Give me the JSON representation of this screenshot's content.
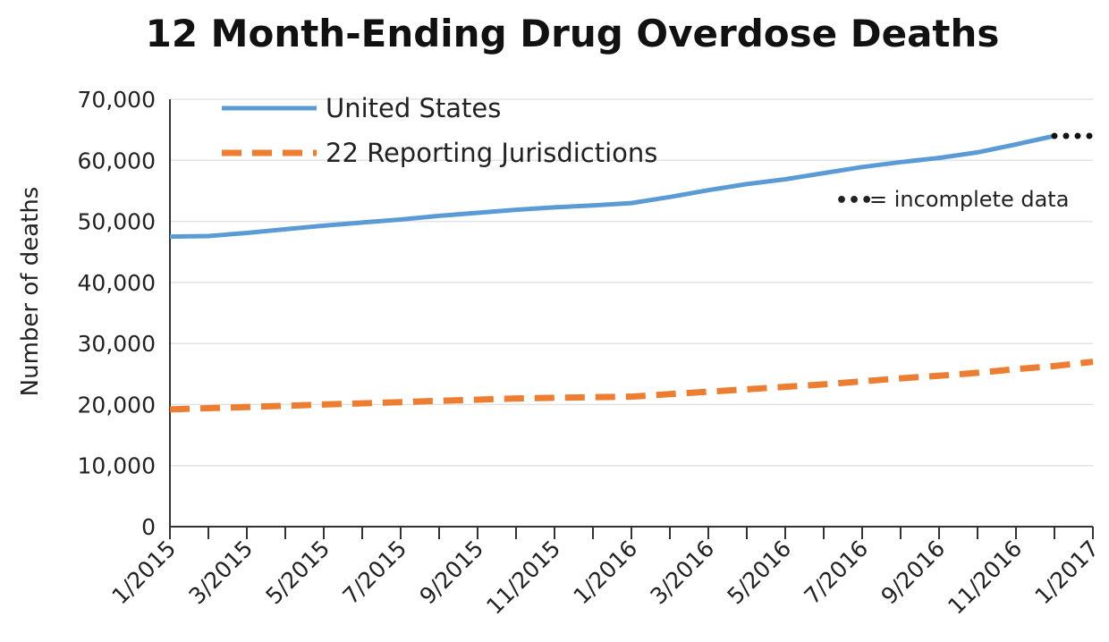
{
  "chart_data": {
    "type": "line",
    "title": "12 Month-Ending Drug Overdose Deaths",
    "xlabel": "",
    "ylabel": "Number of deaths",
    "ylim": [
      0,
      70000
    ],
    "yticks": [
      "0",
      "10,000",
      "20,000",
      "30,000",
      "40,000",
      "50,000",
      "60,000",
      "70,000"
    ],
    "x": [
      "1/2015",
      "2/2015",
      "3/2015",
      "4/2015",
      "5/2015",
      "6/2015",
      "7/2015",
      "8/2015",
      "9/2015",
      "10/2015",
      "11/2015",
      "12/2015",
      "1/2016",
      "2/2016",
      "3/2016",
      "4/2016",
      "5/2016",
      "6/2016",
      "7/2016",
      "8/2016",
      "9/2016",
      "10/2016",
      "11/2016",
      "12/2016",
      "1/2017"
    ],
    "xticks": [
      "1/2015",
      "3/2015",
      "5/2015",
      "7/2015",
      "9/2015",
      "11/2015",
      "1/2016",
      "3/2016",
      "5/2016",
      "7/2016",
      "9/2016",
      "11/2016",
      "1/2017"
    ],
    "grid": true,
    "legend_position": "top-left",
    "series": [
      {
        "name": "United States",
        "color": "#5b9bd5",
        "style": "solid",
        "values": [
          47500,
          47600,
          48100,
          48700,
          49300,
          49800,
          50300,
          50900,
          51400,
          51900,
          52300,
          52600,
          53000,
          54000,
          55100,
          56100,
          56900,
          57900,
          58900,
          59700,
          60400,
          61300,
          62600,
          64000,
          null
        ],
        "incomplete_values": [
          null,
          null,
          null,
          null,
          null,
          null,
          null,
          null,
          null,
          null,
          null,
          null,
          null,
          null,
          null,
          null,
          null,
          null,
          null,
          null,
          null,
          null,
          null,
          64000,
          64000
        ]
      },
      {
        "name": "22 Reporting Jurisdictions",
        "color": "#ed7d31",
        "style": "dashed",
        "values": [
          19200,
          19400,
          19600,
          19800,
          20000,
          20200,
          20400,
          20600,
          20800,
          21000,
          21100,
          21200,
          21300,
          21700,
          22100,
          22500,
          22900,
          23300,
          23800,
          24300,
          24700,
          25200,
          25800,
          26300,
          27000
        ]
      }
    ],
    "annotation": {
      "symbol": "•••",
      "text": "= incomplete data"
    }
  }
}
